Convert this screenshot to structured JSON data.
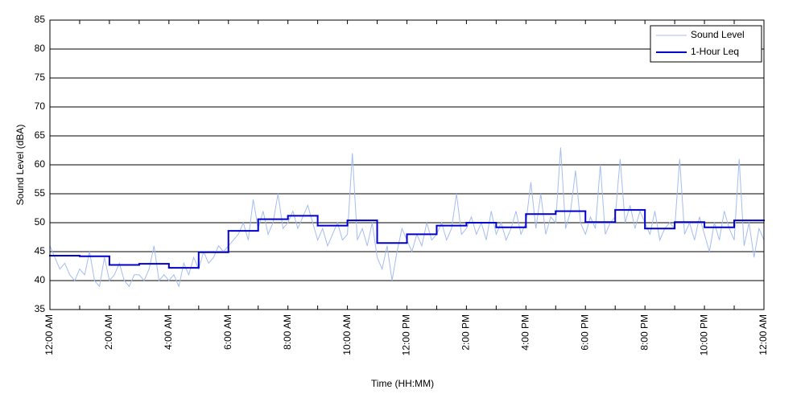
{
  "chart_data": {
    "type": "line",
    "xlabel": "Time (HH:MM)",
    "ylabel": "Sound Level (dBA)",
    "xlim": [
      0,
      1440
    ],
    "ylim": [
      35,
      85
    ],
    "xticks": [
      {
        "value": 0,
        "label": "12:00 AM"
      },
      {
        "value": 120,
        "label": "2:00 AM"
      },
      {
        "value": 240,
        "label": "4:00 AM"
      },
      {
        "value": 360,
        "label": "6:00 AM"
      },
      {
        "value": 480,
        "label": "8:00 AM"
      },
      {
        "value": 600,
        "label": "10:00 AM"
      },
      {
        "value": 720,
        "label": "12:00 PM"
      },
      {
        "value": 840,
        "label": "2:00 PM"
      },
      {
        "value": 960,
        "label": "4:00 PM"
      },
      {
        "value": 1080,
        "label": "6:00 PM"
      },
      {
        "value": 1200,
        "label": "8:00 PM"
      },
      {
        "value": 1320,
        "label": "10:00 PM"
      },
      {
        "value": 1440,
        "label": "12:00 AM"
      }
    ],
    "xminorticks": [
      60,
      180,
      300,
      420,
      540,
      660,
      780,
      900,
      1020,
      1140,
      1260,
      1380
    ],
    "yticks": [
      35,
      40,
      45,
      50,
      55,
      60,
      65,
      70,
      75,
      80,
      85
    ],
    "grid": true,
    "legend": "upper right",
    "series": [
      {
        "name": "Sound Level",
        "color": "#a4bdf0",
        "x": [
          0,
          10,
          20,
          30,
          40,
          50,
          60,
          70,
          80,
          90,
          100,
          110,
          120,
          130,
          140,
          150,
          160,
          170,
          180,
          190,
          200,
          210,
          220,
          230,
          240,
          250,
          260,
          270,
          280,
          290,
          300,
          310,
          320,
          330,
          340,
          350,
          360,
          370,
          380,
          390,
          400,
          410,
          420,
          430,
          440,
          450,
          460,
          470,
          480,
          490,
          500,
          510,
          520,
          530,
          540,
          550,
          560,
          570,
          580,
          590,
          600,
          610,
          620,
          630,
          640,
          650,
          660,
          670,
          680,
          690,
          700,
          710,
          720,
          730,
          740,
          750,
          760,
          770,
          780,
          790,
          800,
          810,
          820,
          830,
          840,
          850,
          860,
          870,
          880,
          890,
          900,
          910,
          920,
          930,
          940,
          950,
          960,
          970,
          980,
          990,
          1000,
          1010,
          1020,
          1030,
          1040,
          1050,
          1060,
          1070,
          1080,
          1090,
          1100,
          1110,
          1120,
          1130,
          1140,
          1150,
          1160,
          1170,
          1180,
          1190,
          1200,
          1210,
          1220,
          1230,
          1240,
          1250,
          1260,
          1270,
          1280,
          1290,
          1300,
          1310,
          1320,
          1330,
          1340,
          1350,
          1360,
          1370,
          1380,
          1390,
          1400,
          1410,
          1420,
          1430,
          1440
        ],
        "values": [
          46,
          44,
          42,
          43,
          41,
          40,
          42,
          41,
          45,
          40,
          39,
          44,
          40,
          41,
          43,
          40,
          39,
          41,
          41,
          40,
          42,
          46,
          40,
          41,
          40,
          41,
          39,
          43,
          41,
          44,
          42,
          45,
          43,
          44,
          46,
          45,
          46,
          47,
          48,
          50,
          47,
          54,
          49,
          52,
          48,
          50,
          55,
          49,
          50,
          52,
          49,
          51,
          53,
          50,
          47,
          49,
          46,
          48,
          50,
          47,
          48,
          62,
          47,
          49,
          46,
          50,
          44,
          42,
          46,
          40,
          45,
          49,
          47,
          45,
          48,
          46,
          50,
          47,
          48,
          50,
          47,
          49,
          55,
          48,
          49,
          51,
          48,
          50,
          47,
          52,
          48,
          50,
          47,
          49,
          52,
          48,
          50,
          57,
          49,
          55,
          48,
          51,
          50,
          63,
          49,
          52,
          59,
          50,
          48,
          51,
          49,
          60,
          48,
          50,
          51,
          61,
          50,
          53,
          49,
          52,
          50,
          48,
          52,
          47,
          49,
          50,
          49,
          61,
          48,
          50,
          47,
          51,
          48,
          45,
          50,
          47,
          52,
          49,
          47,
          61,
          46,
          50,
          44,
          49,
          47
        ]
      },
      {
        "name": "1-Hour Leq",
        "color": "#0000cc",
        "step": "post",
        "x": [
          0,
          60,
          120,
          180,
          240,
          300,
          360,
          420,
          480,
          540,
          600,
          660,
          720,
          780,
          840,
          900,
          960,
          1020,
          1080,
          1140,
          1200,
          1260,
          1320,
          1380
        ],
        "values": [
          44.3,
          44.2,
          42.7,
          42.9,
          42.2,
          44.9,
          48.6,
          50.6,
          51.2,
          49.5,
          50.4,
          46.5,
          48.0,
          49.5,
          50.0,
          49.2,
          51.5,
          52.0,
          50.1,
          52.2,
          49.0,
          50.1,
          49.2,
          50.4
        ]
      }
    ]
  }
}
